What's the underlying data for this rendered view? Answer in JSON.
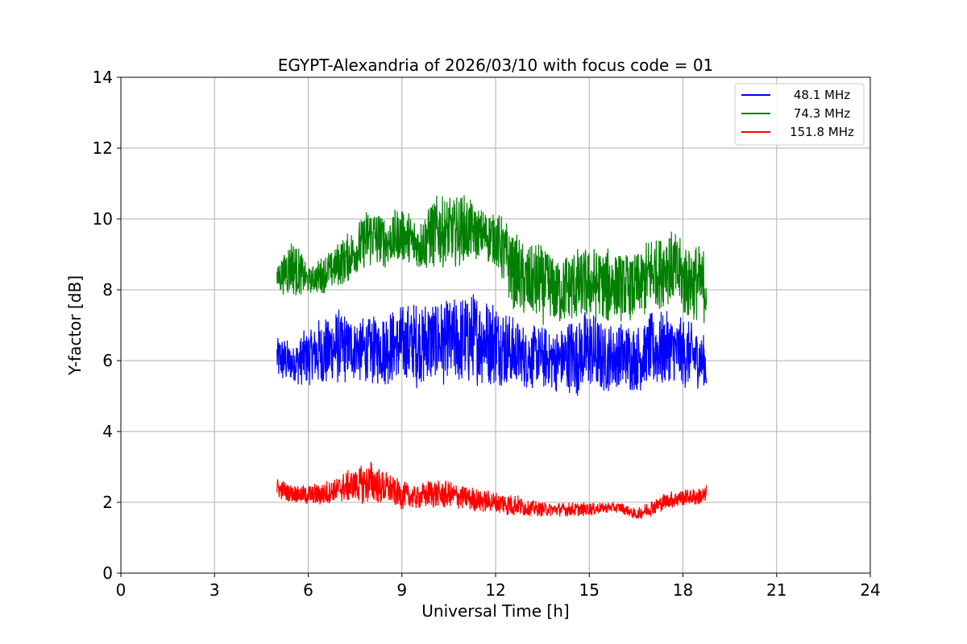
{
  "chart_data": {
    "type": "line",
    "title": "EGYPT-Alexandria of 2026/03/10 with focus code = 01",
    "xlabel": "Universal Time [h]",
    "ylabel": "Y-factor [dB]",
    "xlim": [
      0,
      24
    ],
    "ylim": [
      0,
      14
    ],
    "xticks": [
      0,
      3,
      6,
      9,
      12,
      15,
      18,
      21,
      24
    ],
    "yticks": [
      0,
      2,
      4,
      6,
      8,
      10,
      12,
      14
    ],
    "grid": true,
    "legend_position": "top-right",
    "series": [
      {
        "name": " 48.1 MHz",
        "color": "#0000ff",
        "x": [
          5.0,
          5.5,
          6.0,
          6.5,
          7.0,
          7.5,
          8.0,
          8.5,
          9.0,
          9.5,
          10.0,
          10.5,
          11.0,
          11.5,
          12.0,
          12.5,
          13.0,
          13.5,
          14.0,
          14.5,
          15.0,
          15.5,
          16.0,
          16.5,
          17.0,
          17.5,
          18.0,
          18.5,
          18.75
        ],
        "min": [
          5.4,
          5.3,
          5.3,
          5.2,
          5.3,
          5.4,
          5.3,
          5.3,
          5.3,
          5.2,
          5.3,
          5.3,
          5.2,
          5.3,
          5.3,
          5.2,
          5.2,
          5.2,
          5.1,
          5.0,
          5.0,
          5.1,
          5.1,
          5.1,
          5.2,
          5.2,
          5.2,
          5.2,
          5.1
        ],
        "max": [
          6.8,
          6.5,
          7.0,
          7.3,
          7.5,
          7.3,
          7.2,
          7.5,
          7.6,
          7.7,
          7.8,
          7.7,
          7.9,
          8.0,
          7.8,
          7.3,
          7.0,
          7.0,
          6.9,
          7.3,
          7.5,
          7.0,
          7.2,
          7.0,
          7.4,
          7.4,
          7.2,
          7.0,
          6.6
        ]
      },
      {
        "name": " 74.3 MHz",
        "color": "#008000",
        "x": [
          5.0,
          5.5,
          6.0,
          6.5,
          7.0,
          7.5,
          8.0,
          8.5,
          9.0,
          9.5,
          10.0,
          10.5,
          11.0,
          11.5,
          12.0,
          12.5,
          13.0,
          13.5,
          14.0,
          14.5,
          15.0,
          15.5,
          16.0,
          16.5,
          17.0,
          17.5,
          18.0,
          18.5,
          18.75
        ],
        "min": [
          7.9,
          7.8,
          7.9,
          7.9,
          8.1,
          8.3,
          8.6,
          8.6,
          8.7,
          8.5,
          8.6,
          8.6,
          8.7,
          8.8,
          8.7,
          7.5,
          7.1,
          7.0,
          7.0,
          7.0,
          7.1,
          7.0,
          7.1,
          7.1,
          7.3,
          7.6,
          7.2,
          7.1,
          7.0
        ],
        "max": [
          8.7,
          9.6,
          8.6,
          9.0,
          9.4,
          9.8,
          10.5,
          10.1,
          10.4,
          10.0,
          10.7,
          10.6,
          10.7,
          10.3,
          10.3,
          9.8,
          9.2,
          9.4,
          9.0,
          9.2,
          9.2,
          9.3,
          9.1,
          9.0,
          9.6,
          9.8,
          9.4,
          9.3,
          9.2
        ]
      },
      {
        "name": " 151.8 MHz",
        "color": "#ff0000",
        "x": [
          5.0,
          5.5,
          6.0,
          6.5,
          7.0,
          7.5,
          8.0,
          8.5,
          9.0,
          9.5,
          10.0,
          10.5,
          11.0,
          11.5,
          12.0,
          12.5,
          13.0,
          13.5,
          14.0,
          14.5,
          15.0,
          15.5,
          16.0,
          16.5,
          17.0,
          17.5,
          18.0,
          18.5,
          18.75
        ],
        "min": [
          2.1,
          2.0,
          1.9,
          1.9,
          2.0,
          2.0,
          1.9,
          1.9,
          1.8,
          1.8,
          1.8,
          1.8,
          1.8,
          1.7,
          1.7,
          1.6,
          1.6,
          1.6,
          1.6,
          1.6,
          1.6,
          1.7,
          1.7,
          1.5,
          1.6,
          1.8,
          1.9,
          1.9,
          1.9
        ],
        "max": [
          2.7,
          2.5,
          2.5,
          2.6,
          2.8,
          3.0,
          3.2,
          2.9,
          2.6,
          2.5,
          2.7,
          2.6,
          2.5,
          2.4,
          2.3,
          2.3,
          2.1,
          2.0,
          2.0,
          2.0,
          2.0,
          2.0,
          2.0,
          1.8,
          2.1,
          2.3,
          2.4,
          2.4,
          2.5
        ]
      }
    ]
  }
}
